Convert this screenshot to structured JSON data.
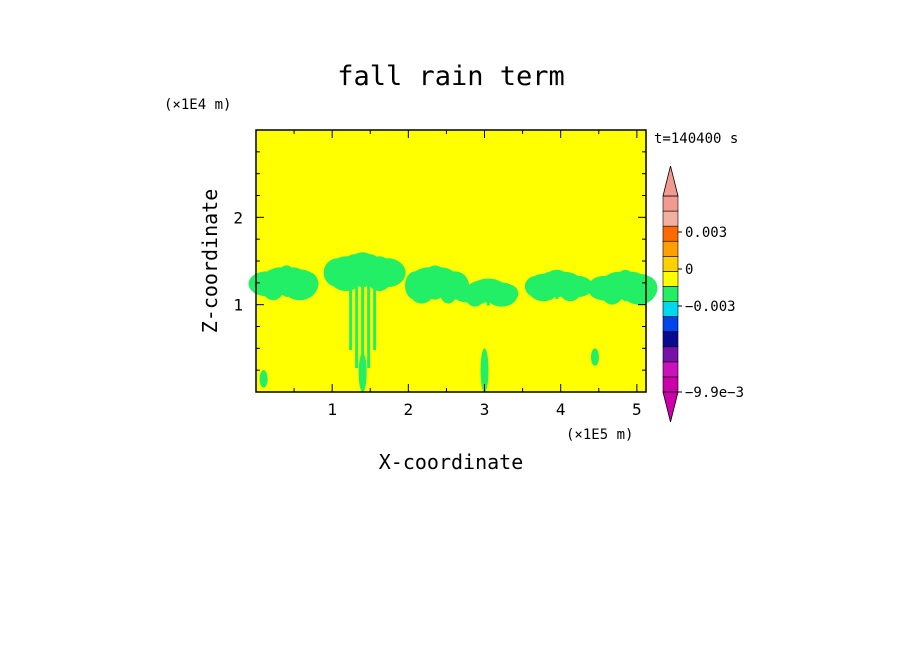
{
  "chart_data": {
    "type": "heatmap",
    "title": "fall rain term",
    "xlabel": "X-coordinate",
    "ylabel": "Z-coordinate",
    "x_unit": "(×1E5 m)",
    "y_unit": "(×1E4 m)",
    "time_label": "t=140400 s",
    "xlim": [
      0,
      5.12
    ],
    "ylim": [
      0,
      3.0
    ],
    "x_ticks": [
      1,
      2,
      3,
      4,
      5
    ],
    "y_ticks": [
      1,
      2
    ],
    "grid": false,
    "background_level": "0 to 0.001",
    "background_color": "#ffff00",
    "feature_color": "#22ee66",
    "colorbar": {
      "placement": "right",
      "levels_bottom_to_top": [
        {
          "color": "#cc00aa"
        },
        {
          "color": "#cc10bb"
        },
        {
          "color": "#7711aa"
        },
        {
          "color": "#0a0a90"
        },
        {
          "color": "#0044ee"
        },
        {
          "color": "#00d8f0"
        },
        {
          "color": "#22ee66"
        },
        {
          "color": "#ffff00"
        },
        {
          "color": "#ffd000"
        },
        {
          "color": "#ffa000"
        },
        {
          "color": "#ff6a00"
        },
        {
          "color": "#f2b0a0"
        },
        {
          "color": "#f29a90"
        }
      ],
      "under_color": "#cc00aa",
      "over_color": "#f29a90",
      "tick_labels": [
        "0.003",
        "0",
        "−0.003",
        "−9.9e−3"
      ]
    },
    "green_regions": [
      {
        "x_center": 0.4,
        "z_bottom": 1.05,
        "z_top": 1.45
      },
      {
        "x_center": 1.4,
        "z_bottom": 0.0,
        "z_top": 1.6
      },
      {
        "x_center": 2.35,
        "z_bottom": 1.0,
        "z_top": 1.45
      },
      {
        "x_center": 3.05,
        "z_bottom": 1.0,
        "z_top": 1.3
      },
      {
        "x_center": 3.95,
        "z_bottom": 1.05,
        "z_top": 1.4
      },
      {
        "x_center": 4.85,
        "z_bottom": 1.0,
        "z_top": 1.4
      }
    ]
  }
}
